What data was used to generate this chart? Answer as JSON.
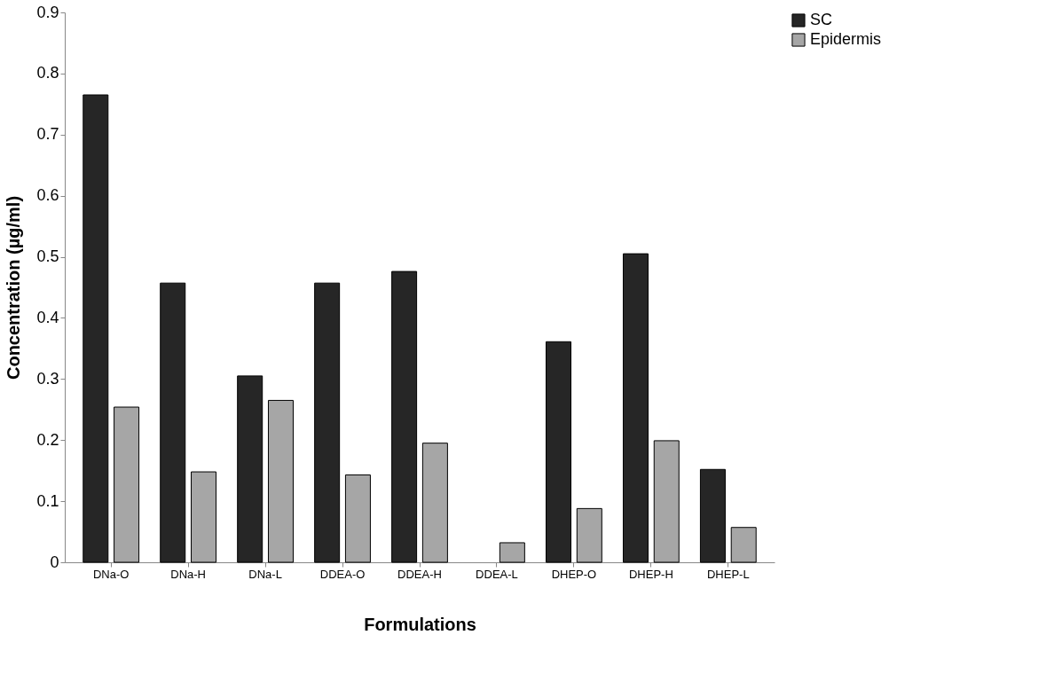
{
  "chart_data": {
    "type": "bar",
    "xlabel": "Formulations",
    "ylabel": "Concentration (µg/ml)",
    "categories": [
      "DNa-O",
      "DNa-H",
      "DNa-L",
      "DDEA-O",
      "DDEA-H",
      "DDEA-L",
      "DHEP-O",
      "DHEP-H",
      "DHEP-L"
    ],
    "series": [
      {
        "name": "SC",
        "color": "#262626",
        "values": [
          0.765,
          0.457,
          0.305,
          0.457,
          0.476,
          null,
          0.361,
          0.505,
          0.152
        ]
      },
      {
        "name": "Epidermis",
        "color": "#a6a6a6",
        "values": [
          0.254,
          0.148,
          0.265,
          0.143,
          0.195,
          0.032,
          0.088,
          0.199,
          0.057
        ]
      }
    ],
    "ylim": [
      0,
      0.9
    ],
    "yticks": [
      0,
      0.1,
      0.2,
      0.3,
      0.4,
      0.5,
      0.6,
      0.7,
      0.8,
      0.9
    ],
    "grid": false,
    "legend": "right"
  }
}
